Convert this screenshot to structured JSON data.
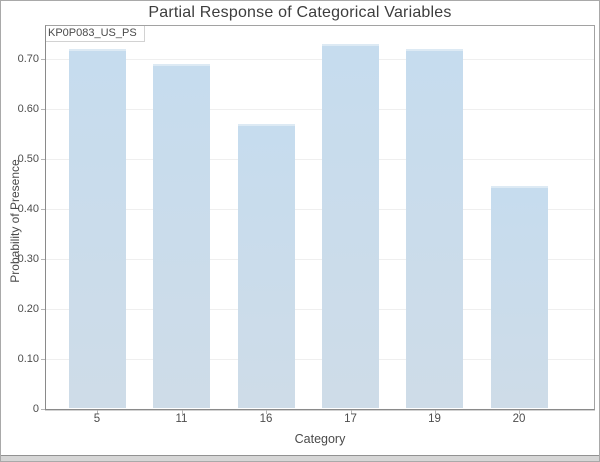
{
  "chart_data": {
    "type": "bar",
    "title": "Partial Response of Categorical Variables",
    "facet_label": "KP0P083_US_PS",
    "xlabel": "Category",
    "ylabel": "Probability of Presence",
    "categories": [
      "5",
      "11",
      "16",
      "17",
      "19",
      "20"
    ],
    "values": [
      0.72,
      0.69,
      0.57,
      0.73,
      0.72,
      0.445
    ],
    "ylim": [
      0,
      0.77
    ],
    "ytick_values": [
      0,
      0.1,
      0.2,
      0.3,
      0.4,
      0.5,
      0.6,
      0.7
    ],
    "ytick_labels": [
      "0",
      "0.10",
      "0.20",
      "0.30",
      "0.40",
      "0.50",
      "0.60",
      "0.70"
    ],
    "grid": "horizontal",
    "legend": "none",
    "bar_colors": {
      "fill_top": "#c6dcee",
      "fill_bottom": "#cedce8",
      "edge_highlight": "#ddeaf4"
    }
  }
}
